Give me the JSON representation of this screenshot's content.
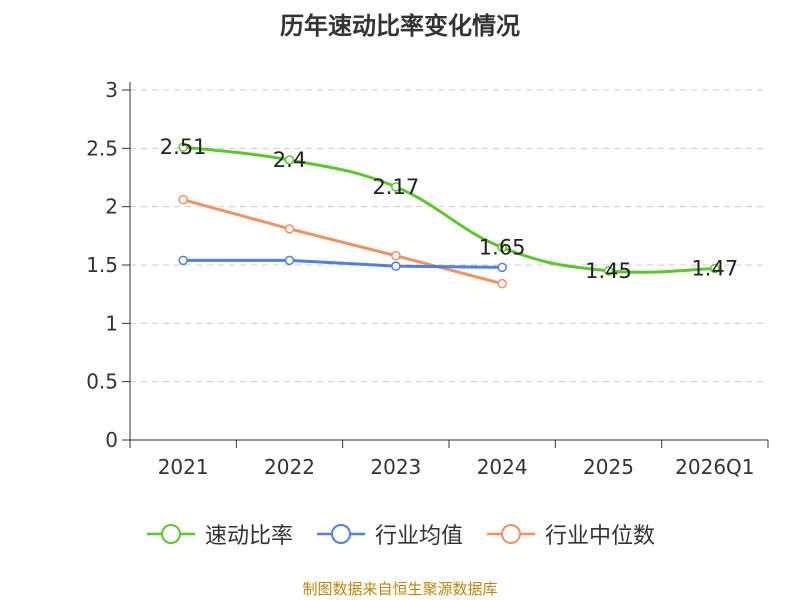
{
  "chart_data": {
    "type": "line",
    "title": "历年速动比率变化情况",
    "categories": [
      "2021",
      "2022",
      "2023",
      "2024",
      "2025",
      "2026Q1"
    ],
    "ylim": [
      0,
      3
    ],
    "yticks": [
      "0",
      "0.5",
      "1",
      "1.5",
      "2",
      "2.5",
      "3"
    ],
    "ytick_values": [
      0,
      0.5,
      1,
      1.5,
      2,
      2.5,
      3
    ],
    "grid": true,
    "legend_position": "bottom",
    "series": [
      {
        "name": "速动比率",
        "color": "#5cc72a",
        "values": [
          2.51,
          2.4,
          2.17,
          1.65,
          1.45,
          1.47
        ],
        "labels": [
          "2.51",
          "2.4",
          "2.17",
          "1.65",
          "1.45",
          "1.47"
        ],
        "show_labels": true,
        "smooth": true
      },
      {
        "name": "行业均值",
        "color": "#4f7fe0",
        "values": [
          1.54,
          1.54,
          1.49,
          1.48,
          null,
          null
        ],
        "show_labels": false,
        "smooth": false
      },
      {
        "name": "行业中位数",
        "color": "#f29160",
        "values": [
          2.06,
          1.81,
          1.58,
          1.34,
          null,
          null
        ],
        "show_labels": false,
        "smooth": false
      }
    ]
  },
  "source_note": "制图数据来自恒生聚源数据库"
}
